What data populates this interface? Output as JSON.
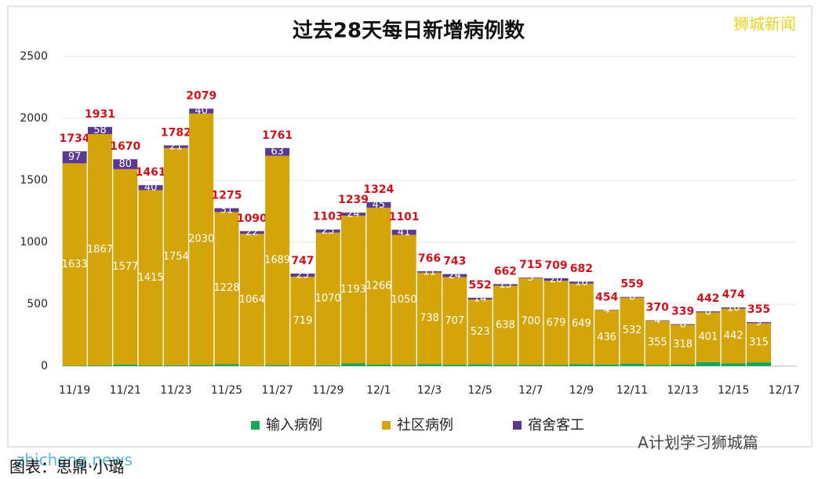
{
  "chart_data": {
    "type": "bar",
    "stacked": true,
    "title": "过去28天每日新增病例数",
    "categories": [
      "11/19",
      null,
      "11/21",
      null,
      "11/23",
      null,
      "11/25",
      null,
      "11/27",
      null,
      "11/29",
      null,
      "12/1",
      null,
      "12/3",
      null,
      "12/5",
      null,
      "12/7",
      null,
      "12/9",
      null,
      "12/11",
      null,
      "12/13",
      null,
      "12/15",
      null,
      "12/17"
    ],
    "series": [
      {
        "name": "输入病例",
        "color": "#1aa55a",
        "values": [
          4,
          6,
          13,
          6,
          7,
          9,
          16,
          4,
          9,
          3,
          8,
          22,
          13,
          10,
          17,
          12,
          15,
          11,
          10,
          10,
          17,
          14,
          21,
          11,
          15,
          33,
          22,
          31,
          null
        ]
      },
      {
        "name": "社区病例",
        "color": "#d4a50a",
        "values": [
          1633,
          1867,
          1577,
          1415,
          1754,
          2030,
          1228,
          1064,
          1689,
          719,
          1070,
          1193,
          1266,
          1050,
          738,
          707,
          523,
          638,
          700,
          679,
          649,
          436,
          532,
          355,
          318,
          401,
          442,
          315,
          null
        ]
      },
      {
        "name": "宿舍客工",
        "color": "#5b3a8e",
        "values": [
          97,
          58,
          80,
          40,
          21,
          40,
          31,
          22,
          63,
          25,
          25,
          24,
          45,
          41,
          11,
          24,
          14,
          13,
          5,
          20,
          16,
          4,
          6,
          4,
          6,
          8,
          10,
          9,
          null
        ]
      }
    ],
    "totals": [
      1734,
      1931,
      1670,
      1461,
      1782,
      2079,
      1275,
      1090,
      1761,
      747,
      1103,
      1239,
      1324,
      1101,
      766,
      743,
      552,
      662,
      715,
      709,
      682,
      454,
      559,
      370,
      339,
      442,
      474,
      355,
      null
    ],
    "ylim": [
      0,
      2500
    ],
    "yticks": [
      0,
      500,
      1000,
      1500,
      2000,
      2500
    ],
    "grid": true,
    "legend": "bottom"
  },
  "watermarks": [
    "狮城新闻",
    "A计划学习狮城篇",
    "zhicheng.news"
  ],
  "caption": "图表：思鼎·小璐"
}
